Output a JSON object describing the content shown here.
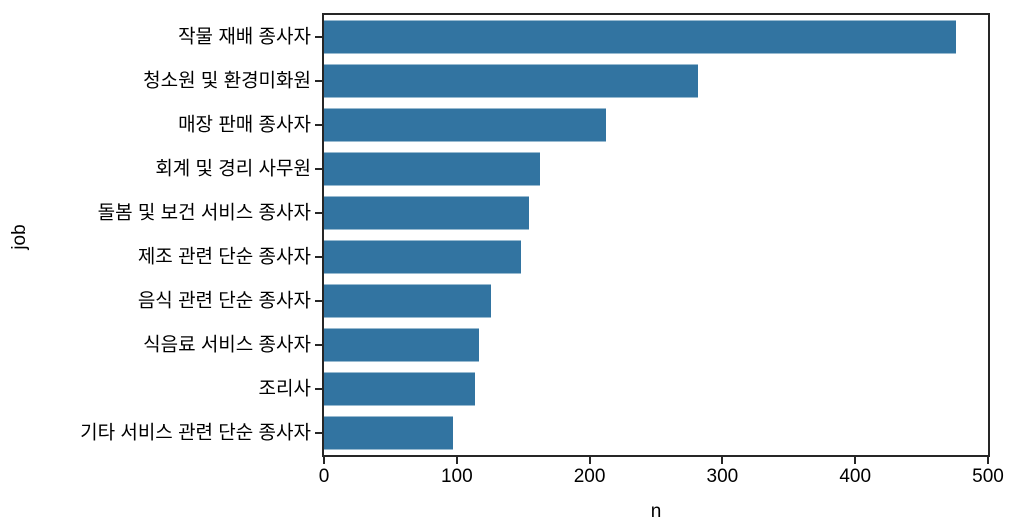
{
  "chart_data": {
    "type": "bar",
    "orientation": "horizontal",
    "title": "",
    "xlabel": "n",
    "ylabel": "job",
    "categories": [
      "작물 재배 종사자",
      "청소원 및 환경미화원",
      "매장 판매 종사자",
      "회계 및 경리 사무원",
      "돌봄 및 보건 서비스 종사자",
      "제조 관련 단순 종사자",
      "음식 관련 단순 종사자",
      "식음료 서비스 종사자",
      "조리사",
      "기타 서비스 관련 단순 종사자"
    ],
    "values": [
      476,
      282,
      212,
      163,
      154,
      148,
      126,
      117,
      114,
      97
    ],
    "xlim": [
      0,
      500
    ],
    "xticks": [
      0,
      100,
      200,
      300,
      400,
      500
    ],
    "grid": false,
    "legend": null,
    "bar_color": "#3274a1",
    "spine_color": "#262626",
    "text_color": "#000000"
  }
}
